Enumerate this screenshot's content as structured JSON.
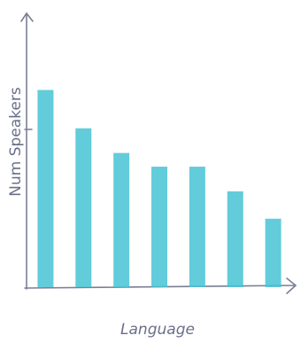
{
  "chart_data": {
    "type": "bar",
    "x_label": "Language",
    "y_label": "Num Speakers",
    "categories": [
      null,
      null,
      null,
      null,
      null,
      null,
      null
    ],
    "values": [
      72,
      58,
      49,
      44,
      44,
      35,
      25
    ],
    "color": "#47c3d3",
    "ylim": [
      0,
      100
    ]
  }
}
